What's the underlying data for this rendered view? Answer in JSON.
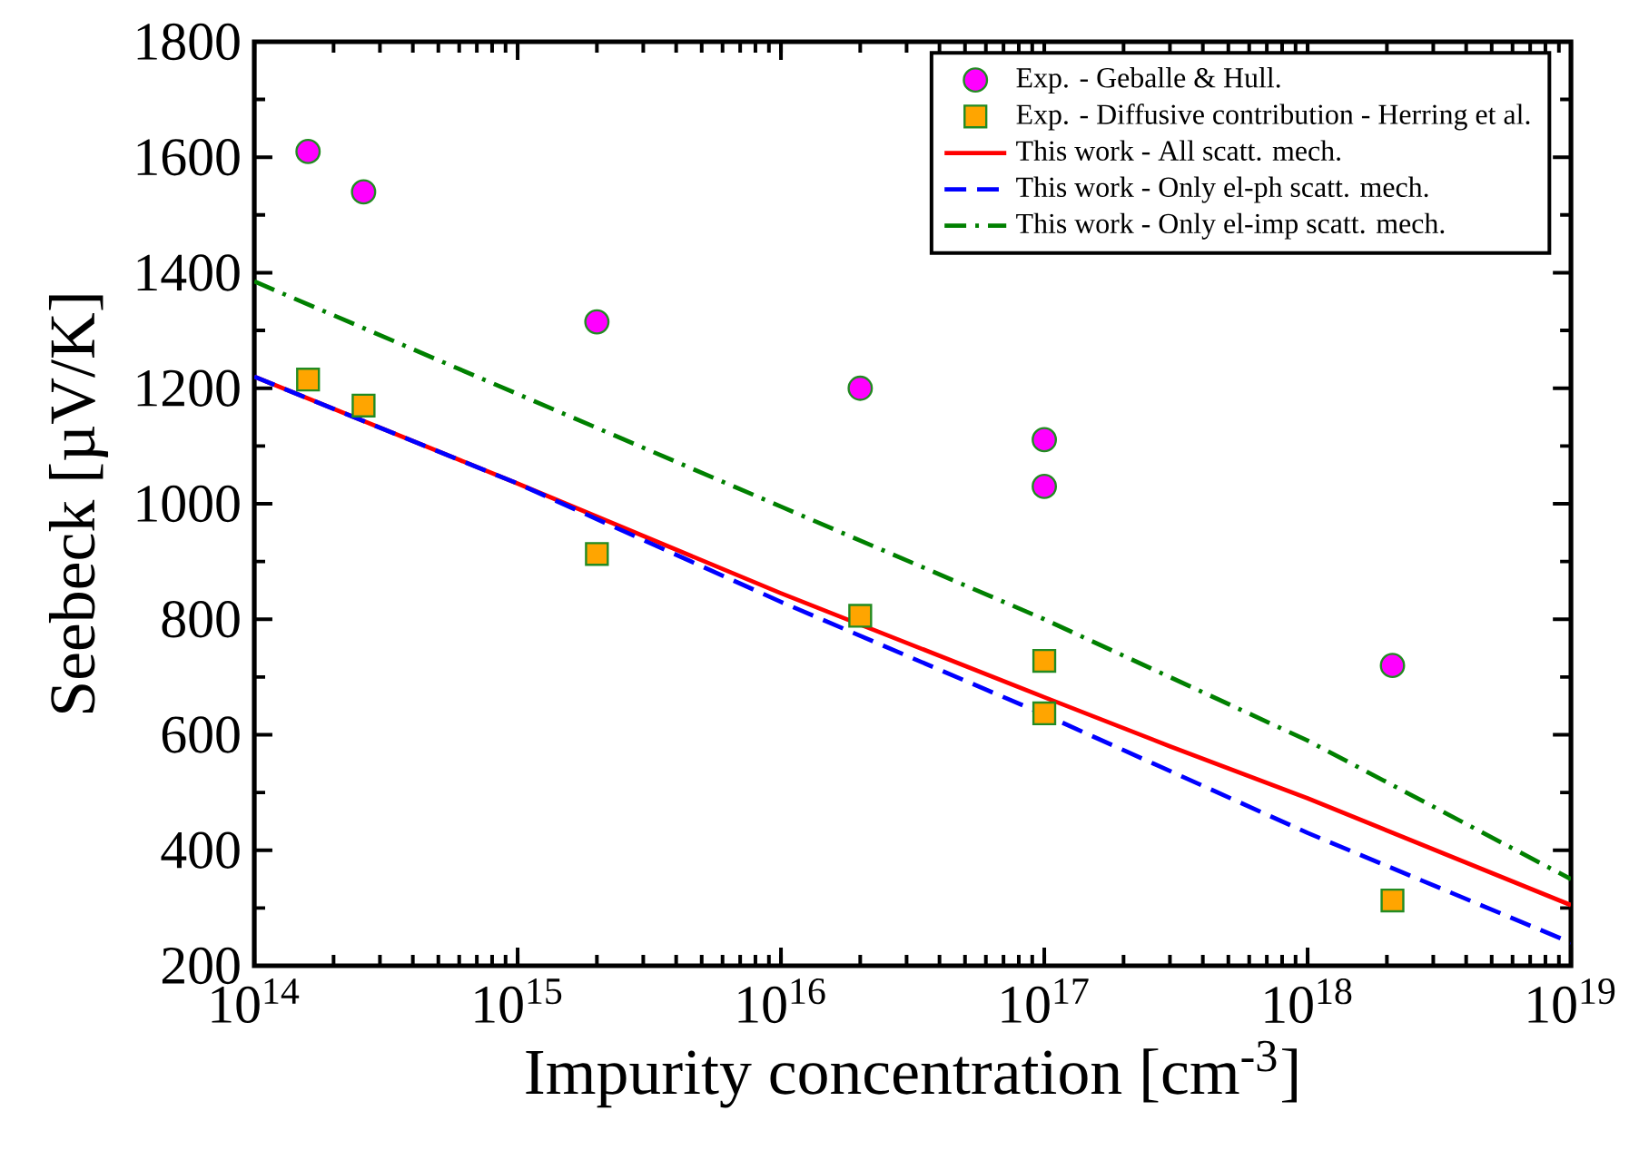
{
  "chart_data": {
    "type": "line",
    "xlabel": "Impurity concentration [cm$^{-3}$]",
    "ylabel": "Seebeck [µV/K]",
    "log": "x",
    "xlim": [
      100000000000000.0,
      1e+19
    ],
    "ylim": [
      200,
      1800
    ],
    "xticks": [
      {
        "value": 100000000000000.0,
        "label": "10$^{14}$"
      },
      {
        "value": 1000000000000000.0,
        "label": "10$^{15}$"
      },
      {
        "value": 1e+16,
        "label": "10$^{16}$"
      },
      {
        "value": 1e+17,
        "label": "10$^{17}$"
      },
      {
        "value": 1e+18,
        "label": "10$^{18}$"
      },
      {
        "value": 1e+19,
        "label": "10$^{19}$"
      }
    ],
    "yticks": [
      200,
      400,
      600,
      800,
      1000,
      1200,
      1400,
      1600,
      1800
    ],
    "grid": false,
    "legend": "top right",
    "series": [
      {
        "name": "Exp. - Geballe & Hull.",
        "type": "scatter",
        "marker": "circle",
        "color": "#ff00ff",
        "x": [
          160000000000000.0,
          260000000000000.0,
          2000000000000000.0,
          2e+16,
          1e+17,
          1e+17,
          2.1e+18
        ],
        "values": [
          1610,
          1540,
          1315,
          1200,
          1111,
          1030,
          720
        ]
      },
      {
        "name": "Exp. - Diffusive contribution - Herring et al.",
        "type": "scatter",
        "marker": "square",
        "color": "#ffa500",
        "x": [
          160000000000000.0,
          260000000000000.0,
          2000000000000000.0,
          2e+16,
          1e+17,
          1e+17,
          2.1e+18
        ],
        "values": [
          1215,
          1170,
          913,
          806,
          728,
          637,
          313
        ]
      },
      {
        "name": "This work - All scatt. mech.",
        "line_style": "solid",
        "color": "#ff0000",
        "x": [
          100000000000000.0,
          1000000000000000.0,
          1e+16,
          1e+17,
          3e+17,
          1e+18,
          1e+19
        ],
        "values": [
          1220,
          1035,
          845,
          665,
          580,
          490,
          305
        ]
      },
      {
        "name": "This work - Only el-ph scatt. mech.",
        "line_style": "dashed",
        "color": "#0000ff",
        "x": [
          100000000000000.0,
          1000000000000000.0,
          1e+16,
          1e+17,
          1e+18,
          1e+19
        ],
        "values": [
          1220,
          1035,
          830,
          635,
          430,
          240
        ]
      },
      {
        "name": "This work - Only el-imp scatt. mech.",
        "line_style": "dashdotted",
        "color": "#008000",
        "x": [
          100000000000000.0,
          1000000000000000.0,
          1e+16,
          1e+17,
          1e+18,
          1e+19
        ],
        "values": [
          1385,
          1190,
          995,
          800,
          590,
          350
        ]
      }
    ]
  }
}
